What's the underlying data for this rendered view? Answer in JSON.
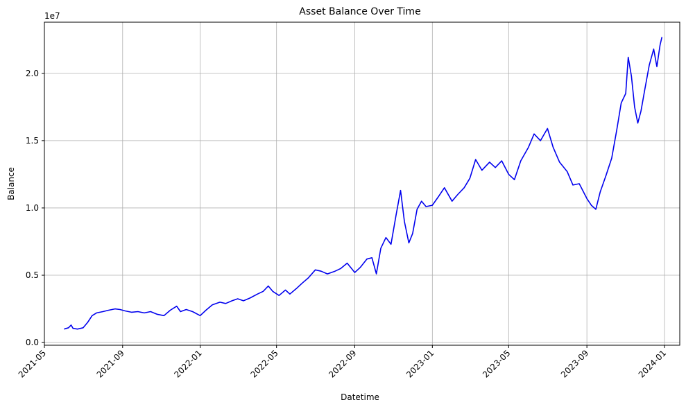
{
  "chart_data": {
    "type": "line",
    "title": "Asset Balance Over Time",
    "xlabel": "Datetime",
    "ylabel": "Balance",
    "y_offset_label": "1e7",
    "grid": true,
    "line_color": "#0000ee",
    "xlim": [
      "2021-05-01",
      "2024-01-25"
    ],
    "ylim": [
      -200000,
      23800000
    ],
    "x_ticks": [
      "2021-05",
      "2021-09",
      "2022-01",
      "2022-05",
      "2022-09",
      "2023-01",
      "2023-05",
      "2023-09",
      "2024-01"
    ],
    "x_tick_dates": [
      "2021-05-01",
      "2021-09-01",
      "2022-01-01",
      "2022-05-01",
      "2022-09-01",
      "2023-01-01",
      "2023-05-01",
      "2023-09-01",
      "2024-01-01"
    ],
    "y_ticks": [
      "0.0",
      "0.5",
      "1.0",
      "1.5",
      "2.0"
    ],
    "y_tick_values": [
      0,
      5000000,
      10000000,
      15000000,
      20000000
    ],
    "series": [
      {
        "x": [
          "2021-06-01",
          "2021-06-08",
          "2021-06-12",
          "2021-06-15",
          "2021-06-22",
          "2021-07-01",
          "2021-07-08",
          "2021-07-15",
          "2021-07-22",
          "2021-08-01",
          "2021-08-10",
          "2021-08-20",
          "2021-08-28",
          "2021-09-05",
          "2021-09-15",
          "2021-09-25",
          "2021-10-05",
          "2021-10-15",
          "2021-10-25",
          "2021-11-05",
          "2021-11-15",
          "2021-11-25",
          "2021-12-01",
          "2021-12-10",
          "2021-12-20",
          "2022-01-01",
          "2022-01-10",
          "2022-01-20",
          "2022-02-01",
          "2022-02-10",
          "2022-02-20",
          "2022-03-01",
          "2022-03-10",
          "2022-03-20",
          "2022-04-01",
          "2022-04-10",
          "2022-04-18",
          "2022-04-25",
          "2022-05-05",
          "2022-05-10",
          "2022-05-15",
          "2022-05-22",
          "2022-06-01",
          "2022-06-10",
          "2022-06-20",
          "2022-07-01",
          "2022-07-10",
          "2022-07-20",
          "2022-08-01",
          "2022-08-10",
          "2022-08-20",
          "2022-09-01",
          "2022-09-10",
          "2022-09-20",
          "2022-09-28",
          "2022-10-05",
          "2022-10-12",
          "2022-10-20",
          "2022-10-28",
          "2022-11-05",
          "2022-11-12",
          "2022-11-18",
          "2022-11-25",
          "2022-12-01",
          "2022-12-08",
          "2022-12-15",
          "2022-12-22",
          "2023-01-01",
          "2023-01-10",
          "2023-01-20",
          "2023-02-01",
          "2023-02-10",
          "2023-02-20",
          "2023-03-01",
          "2023-03-10",
          "2023-03-20",
          "2023-04-01",
          "2023-04-10",
          "2023-04-20",
          "2023-05-01",
          "2023-05-10",
          "2023-05-20",
          "2023-06-01",
          "2023-06-10",
          "2023-06-20",
          "2023-07-01",
          "2023-07-10",
          "2023-07-20",
          "2023-08-01",
          "2023-08-10",
          "2023-08-20",
          "2023-09-01",
          "2023-09-08",
          "2023-09-15",
          "2023-09-22",
          "2023-10-01",
          "2023-10-10",
          "2023-10-18",
          "2023-10-25",
          "2023-11-01",
          "2023-11-05",
          "2023-11-10",
          "2023-11-15",
          "2023-11-20",
          "2023-11-25",
          "2023-12-01",
          "2023-12-08",
          "2023-12-15",
          "2023-12-20",
          "2023-12-25",
          "2023-12-28"
        ],
        "values": [
          1000000,
          1100000,
          1300000,
          1050000,
          1000000,
          1100000,
          1500000,
          2000000,
          2200000,
          2300000,
          2400000,
          2500000,
          2450000,
          2350000,
          2250000,
          2300000,
          2200000,
          2300000,
          2100000,
          2000000,
          2400000,
          2700000,
          2300000,
          2450000,
          2300000,
          2000000,
          2400000,
          2800000,
          3000000,
          2900000,
          3100000,
          3250000,
          3100000,
          3300000,
          3600000,
          3800000,
          4200000,
          3800000,
          3500000,
          3700000,
          3900000,
          3600000,
          4000000,
          4400000,
          4800000,
          5400000,
          5300000,
          5100000,
          5300000,
          5500000,
          5900000,
          5200000,
          5600000,
          6200000,
          6300000,
          5100000,
          7000000,
          7800000,
          7300000,
          9500000,
          11300000,
          9000000,
          7400000,
          8100000,
          9900000,
          10500000,
          10100000,
          10200000,
          10800000,
          11500000,
          10500000,
          11000000,
          11500000,
          12200000,
          13600000,
          12800000,
          13400000,
          13000000,
          13500000,
          12500000,
          12100000,
          13500000,
          14500000,
          15500000,
          15000000,
          15900000,
          14500000,
          13400000,
          12700000,
          11700000,
          11800000,
          10700000,
          10200000,
          9900000,
          11200000,
          12400000,
          13700000,
          15800000,
          17800000,
          18500000,
          21200000,
          19800000,
          17500000,
          16300000,
          17200000,
          18800000,
          20600000,
          21800000,
          20500000,
          22100000,
          22700000
        ]
      }
    ]
  }
}
